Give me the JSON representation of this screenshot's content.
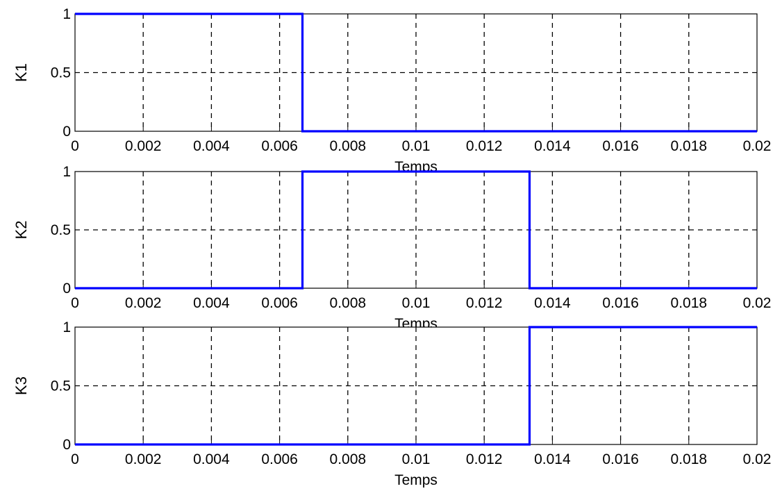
{
  "colors": {
    "line": "#0000ff",
    "axis": "#000000",
    "grid": "#000000",
    "background": "#ffffff"
  },
  "chart_data": [
    {
      "type": "line",
      "title": "",
      "xlabel": "Temps",
      "ylabel": "K1",
      "xlim": [
        0,
        0.02
      ],
      "ylim": [
        0,
        1
      ],
      "xticks": [
        "0",
        "0.002",
        "0.004",
        "0.006",
        "0.008",
        "0.01",
        "0.012",
        "0.014",
        "0.016",
        "0.018",
        "0.02"
      ],
      "yticks": [
        "0",
        "0.5",
        "1"
      ],
      "grid": true,
      "series": [
        {
          "x": [
            0,
            0.00667,
            0.00667,
            0.02
          ],
          "y": [
            1,
            1,
            0,
            0
          ]
        }
      ]
    },
    {
      "type": "line",
      "title": "",
      "xlabel": "Temps",
      "ylabel": "K2",
      "xlim": [
        0,
        0.02
      ],
      "ylim": [
        0,
        1
      ],
      "xticks": [
        "0",
        "0.002",
        "0.004",
        "0.006",
        "0.008",
        "0.01",
        "0.012",
        "0.014",
        "0.016",
        "0.018",
        "0.02"
      ],
      "yticks": [
        "0",
        "0.5",
        "1"
      ],
      "grid": true,
      "series": [
        {
          "x": [
            0,
            0.00667,
            0.00667,
            0.01333,
            0.01333,
            0.02
          ],
          "y": [
            0,
            0,
            1,
            1,
            0,
            0
          ]
        }
      ]
    },
    {
      "type": "line",
      "title": "",
      "xlabel": "Temps",
      "ylabel": "K3",
      "xlim": [
        0,
        0.02
      ],
      "ylim": [
        0,
        1
      ],
      "xticks": [
        "0",
        "0.002",
        "0.004",
        "0.006",
        "0.008",
        "0.01",
        "0.012",
        "0.014",
        "0.016",
        "0.018",
        "0.02"
      ],
      "yticks": [
        "0",
        "0.5",
        "1"
      ],
      "grid": true,
      "series": [
        {
          "x": [
            0,
            0.01333,
            0.01333,
            0.02
          ],
          "y": [
            0,
            0,
            1,
            1
          ]
        }
      ]
    }
  ]
}
